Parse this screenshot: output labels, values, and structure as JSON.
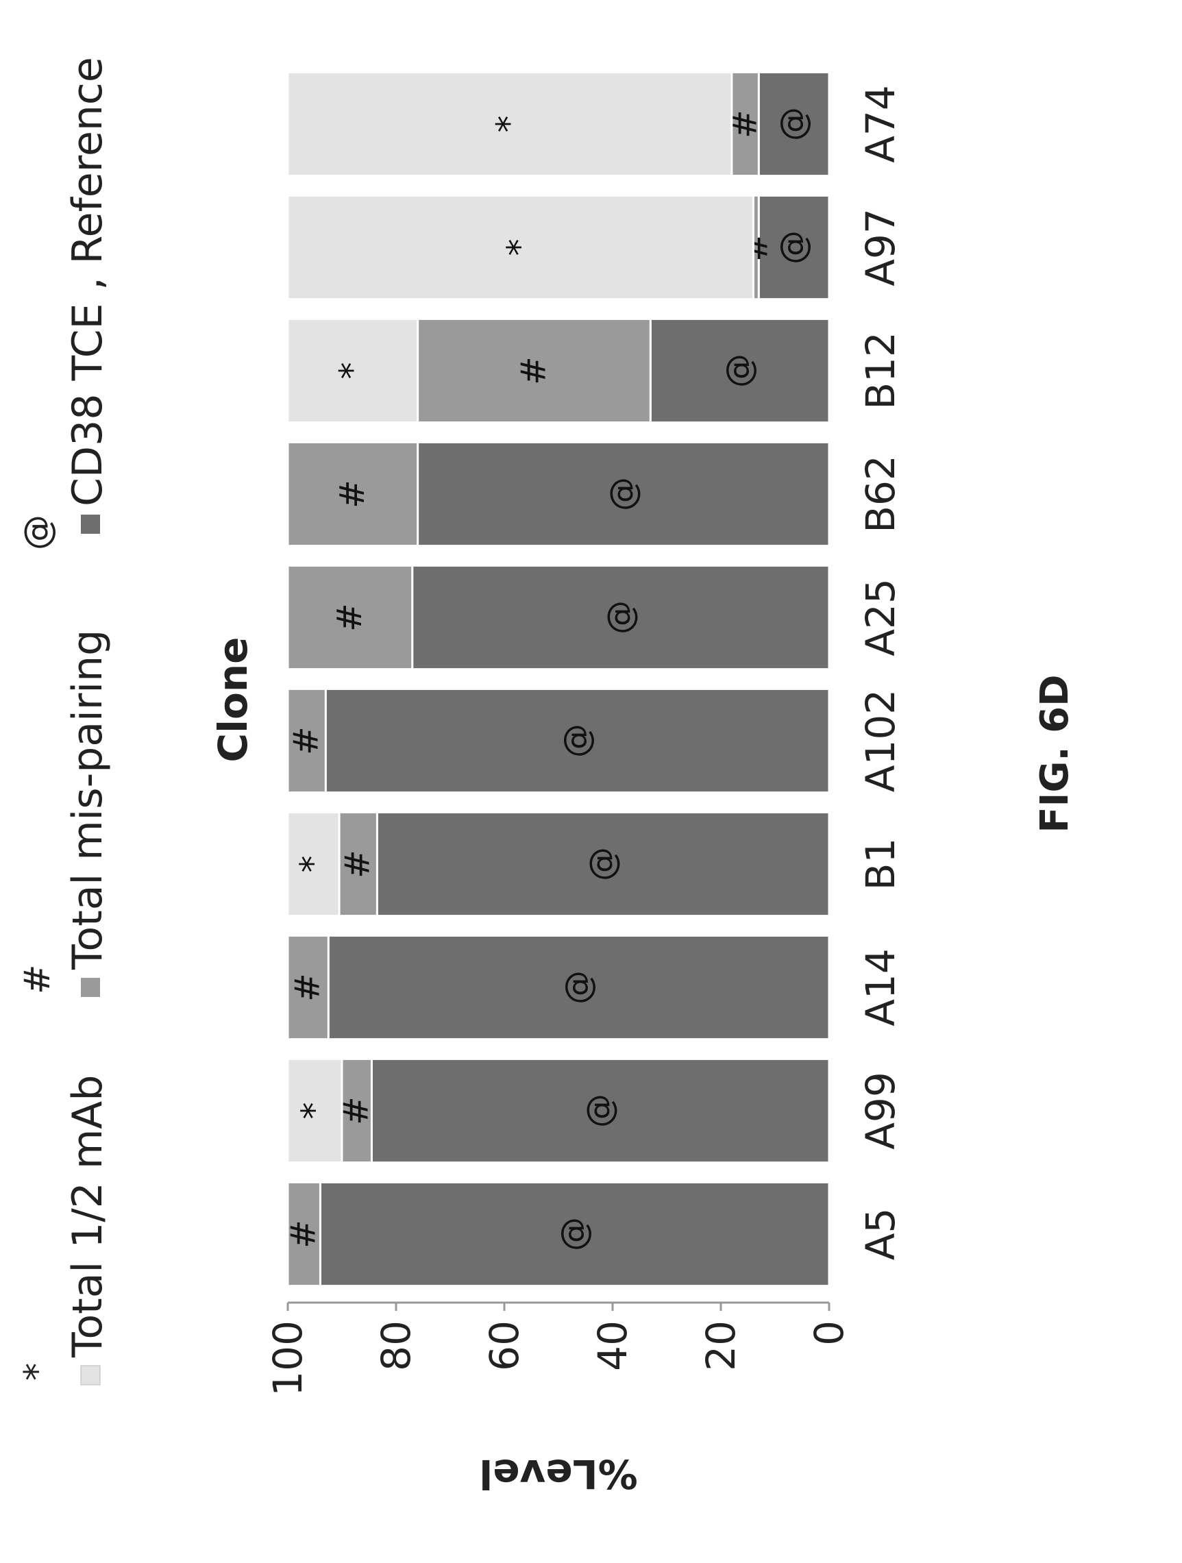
{
  "chart_data": {
    "type": "bar",
    "stacked": true,
    "orientation": "vertical",
    "categories": [
      "A5",
      "A99",
      "A14",
      "B1",
      "A102",
      "A25",
      "B62",
      "B12",
      "A97",
      "A74"
    ],
    "series": [
      {
        "name": "CD38 TCE , Reference",
        "marker": "@",
        "color": "#6e6e6e",
        "values": [
          94,
          84.5,
          92.5,
          83.5,
          93,
          77,
          76,
          33,
          13,
          13
        ]
      },
      {
        "name": "Total mis-pairing",
        "marker": "#",
        "color": "#9a9a9a",
        "values": [
          6,
          5.5,
          7.5,
          7,
          7,
          23,
          24,
          43,
          1,
          5
        ]
      },
      {
        "name": "Total 1/2 mAb",
        "marker": "*",
        "color": "#e3e3e3",
        "values": [
          0,
          10,
          0,
          9.5,
          0,
          0,
          0,
          24,
          86,
          82
        ]
      }
    ],
    "xlabel": "Clone",
    "ylabel": "%Level",
    "ylim": [
      0,
      100
    ],
    "yticks": [
      "0",
      "20",
      "40",
      "60",
      "80",
      "100"
    ],
    "legend_position": "top",
    "grid": false
  },
  "figure_label": "FIG. 6D"
}
